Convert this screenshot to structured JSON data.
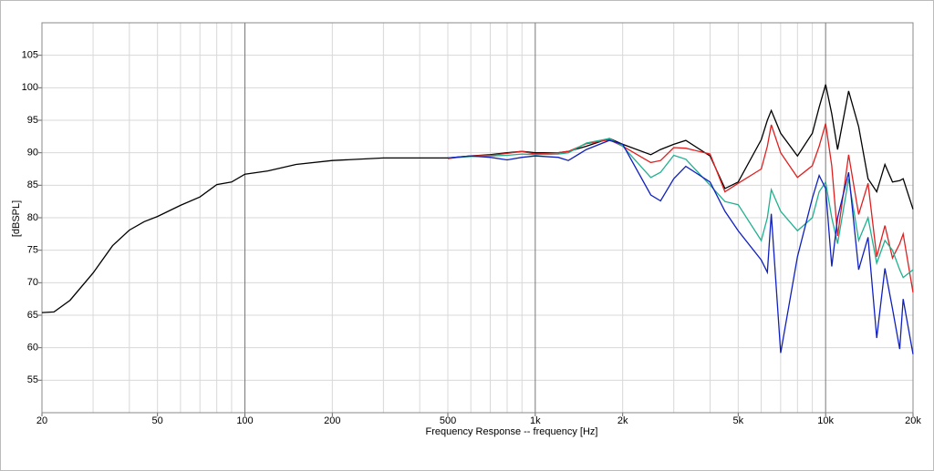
{
  "chart_data": {
    "type": "line",
    "xlabel": "Frequency Response -- frequency [Hz]",
    "ylabel": "[dBSPL]",
    "log_x": true,
    "grid": true,
    "xlim": [
      20,
      20000
    ],
    "ylim": [
      50,
      110
    ],
    "xticks": [
      20,
      50,
      100,
      200,
      500,
      {
        "value": 1000,
        "label": "1k"
      },
      {
        "value": 2000,
        "label": "2k"
      },
      {
        "value": 5000,
        "label": "5k"
      },
      {
        "value": 10000,
        "label": "10k"
      },
      {
        "value": 20000,
        "label": "20k"
      }
    ],
    "xgrid": [
      30,
      40,
      60,
      70,
      80,
      90,
      300,
      400,
      600,
      700,
      800,
      900,
      3000,
      4000,
      6000,
      7000,
      8000,
      9000
    ],
    "yticks": [
      55,
      60,
      65,
      70,
      75,
      80,
      85,
      90,
      95,
      100,
      105
    ],
    "x": [
      20,
      22,
      25,
      30,
      35,
      40,
      45,
      50,
      60,
      70,
      80,
      90,
      100,
      120,
      150,
      200,
      300,
      400,
      500,
      600,
      700,
      800,
      900,
      1000,
      1200,
      1300,
      1500,
      1800,
      2000,
      2500,
      2700,
      3000,
      3300,
      4000,
      4500,
      5000,
      6000,
      6300,
      6500,
      7000,
      8000,
      9000,
      9500,
      10000,
      10500,
      11000,
      12000,
      13000,
      14000,
      15000,
      16000,
      17000,
      18000,
      18500,
      20000
    ],
    "series": [
      {
        "color": "#000000",
        "values": [
          65.4,
          65.5,
          67.3,
          71.5,
          75.7,
          78.1,
          79.4,
          80.2,
          81.9,
          83.2,
          85.1,
          85.5,
          86.7,
          87.2,
          88.2,
          88.8,
          89.2,
          89.2,
          89.2,
          89.5,
          89.7,
          90,
          90.2,
          90,
          90,
          90.2,
          91,
          92.2,
          91.3,
          89.7,
          90.5,
          91.3,
          91.9,
          89.5,
          84.5,
          85.5,
          92,
          95,
          96.5,
          93,
          89.5,
          93,
          97,
          100.5,
          96,
          90.5,
          99.5,
          94,
          86,
          84,
          88.2,
          85.5,
          85.7,
          86,
          81.3
        ]
      },
      {
        "color": "#e02020",
        "values": [
          null,
          null,
          null,
          null,
          null,
          null,
          null,
          null,
          null,
          null,
          null,
          null,
          null,
          null,
          null,
          null,
          null,
          null,
          89.1,
          89.5,
          89.6,
          89.9,
          90.2,
          89.8,
          90,
          90.2,
          91.4,
          92,
          91,
          88.5,
          88.8,
          90.8,
          90.7,
          89.8,
          84,
          85.3,
          87.5,
          91,
          94.3,
          90,
          86.2,
          88,
          91,
          94.5,
          88,
          77.2,
          89.7,
          80.5,
          85.3,
          74,
          78.8,
          73.8,
          76,
          77.5,
          68.5
        ]
      },
      {
        "color": "#20b090",
        "values": [
          null,
          null,
          null,
          null,
          null,
          null,
          null,
          null,
          null,
          null,
          null,
          null,
          null,
          null,
          null,
          null,
          null,
          null,
          89.2,
          89.4,
          89.5,
          89.6,
          89.8,
          89.7,
          89.8,
          90,
          91.5,
          92.2,
          91,
          86.2,
          87,
          89.6,
          89,
          85,
          82.5,
          82,
          76.5,
          80,
          84.3,
          81,
          78,
          80,
          84,
          85.5,
          80,
          76,
          86,
          76.5,
          80,
          73,
          76.5,
          75,
          72,
          70.8,
          72
        ]
      },
      {
        "color": "#1020c0",
        "values": [
          null,
          null,
          null,
          null,
          null,
          null,
          null,
          null,
          null,
          null,
          null,
          null,
          null,
          null,
          null,
          null,
          null,
          null,
          89.2,
          89.5,
          89.3,
          88.9,
          89.3,
          89.5,
          89.3,
          88.8,
          90.5,
          91.9,
          91.3,
          83.5,
          82.6,
          86,
          87.9,
          85.5,
          81,
          78,
          73.5,
          71.6,
          80.6,
          59.2,
          74,
          83,
          86.5,
          84.5,
          72.5,
          80,
          87,
          72,
          77,
          61.5,
          72.2,
          66,
          59.8,
          67.5,
          59
        ]
      }
    ]
  }
}
